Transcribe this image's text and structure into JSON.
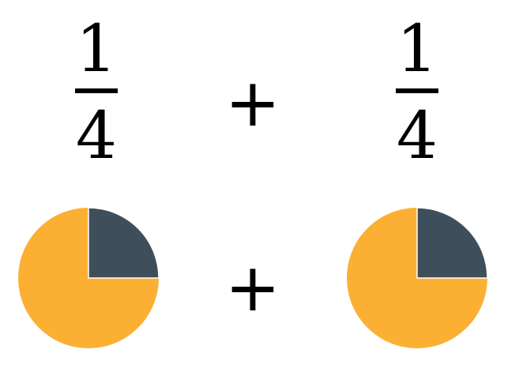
{
  "fractions": [
    {
      "numerator": "1",
      "denominator": "4"
    },
    {
      "numerator": "1",
      "denominator": "4"
    }
  ],
  "operators": {
    "top": "+",
    "bottom": "+"
  },
  "pies": [
    {
      "shaded_fraction": 0.25,
      "shaded_color": "#3f4e5b",
      "unshaded_color": "#fbb034"
    },
    {
      "shaded_fraction": 0.25,
      "shaded_color": "#3f4e5b",
      "unshaded_color": "#fbb034"
    }
  ]
}
